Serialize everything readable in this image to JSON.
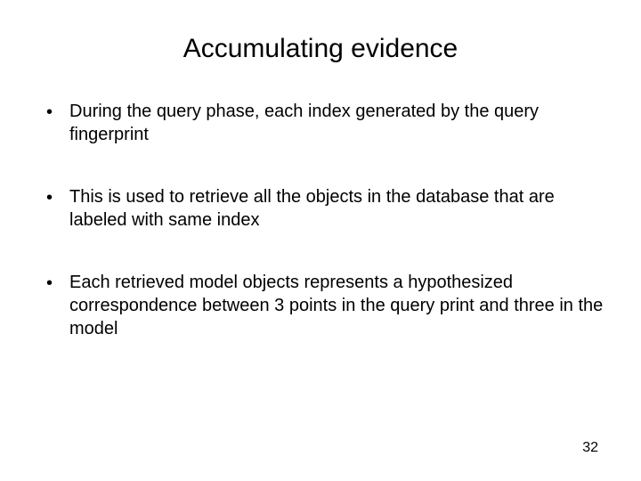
{
  "slide": {
    "title": "Accumulating evidence",
    "bullets": [
      "During the query phase, each index generated by the query fingerprint",
      "This is used to retrieve all the objects in the database that are labeled with same index",
      "Each retrieved model objects represents a hypothesized correspondence between 3 points in the query print and three in the model"
    ],
    "page_number": "32",
    "background_color": "#ffffff",
    "text_color": "#000000",
    "title_fontsize": 30,
    "body_fontsize": 20,
    "bullet_marker": "•"
  }
}
